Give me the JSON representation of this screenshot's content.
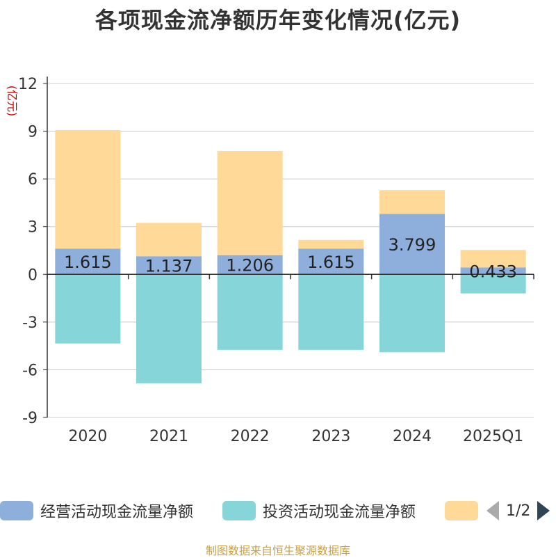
{
  "title": "各项现金流净额历年变化情况(亿元)",
  "source": "制图数据来自恒生聚源数据库",
  "pager_text": "1/2",
  "legend": [
    {
      "label": "经营活动现金流量净额",
      "color": "#8eaedb"
    },
    {
      "label": "投资活动现金流量净额",
      "color": "#86d5d8"
    },
    {
      "label": "",
      "color": "#fed998"
    }
  ],
  "chart_data": {
    "type": "bar",
    "stacked": true,
    "title": "各项现金流净额历年变化情况(亿元)",
    "ylabel": "(亿元)",
    "ylim": [
      -9,
      12
    ],
    "yticks": [
      12,
      9,
      6,
      3,
      0,
      -3,
      -6,
      -9
    ],
    "grid": true,
    "legend_position": "bottom",
    "categories": [
      "2020",
      "2021",
      "2022",
      "2023",
      "2024",
      "2025Q1"
    ],
    "series": [
      {
        "name": "经营活动现金流量净额",
        "color": "#8eaedb",
        "values": [
          1.615,
          1.137,
          1.206,
          1.615,
          3.799,
          0.433
        ],
        "labels": [
          "1.615",
          "1.137",
          "1.206",
          "1.615",
          "3.799",
          "0.433"
        ]
      },
      {
        "name": "投资活动现金流量净额",
        "color": "#86d5d8",
        "values": [
          -4.35,
          -6.85,
          -4.75,
          -4.75,
          -4.9,
          -1.2
        ]
      },
      {
        "color": "#fed998",
        "values": [
          7.45,
          2.1,
          6.55,
          0.55,
          1.5,
          1.1
        ]
      }
    ]
  }
}
